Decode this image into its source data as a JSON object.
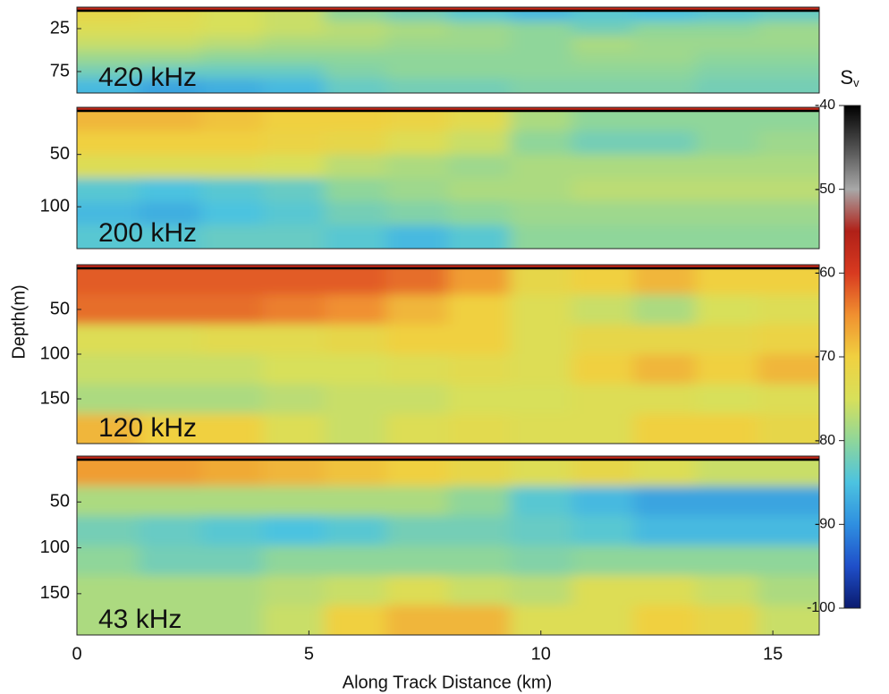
{
  "chart_data": [
    {
      "type": "heatmap",
      "label": "420 kHz",
      "xlim": [
        0,
        16
      ],
      "ylim": [
        0,
        100
      ],
      "yticks": [
        25,
        75
      ],
      "values": [
        [
          -72,
          -73,
          -75,
          -76,
          -80,
          -82,
          -84,
          -86,
          -84,
          -85,
          -84,
          -83
        ],
        [
          -74,
          -74,
          -75,
          -76,
          -77,
          -78,
          -79,
          -80,
          -82,
          -80,
          -80,
          -79
        ],
        [
          -76,
          -76,
          -77,
          -78,
          -78,
          -79,
          -79,
          -80,
          -78,
          -79,
          -79,
          -79
        ],
        [
          -79,
          -79,
          -80,
          -80,
          -80,
          -80,
          -80,
          -80,
          -79,
          -79,
          -80,
          -80
        ],
        [
          -82,
          -83,
          -83,
          -83,
          -81,
          -80,
          -80,
          -80,
          -80,
          -80,
          -81,
          -81
        ],
        [
          -86,
          -88,
          -87,
          -86,
          -83,
          -82,
          -82,
          -81,
          -81,
          -81,
          -82,
          -82
        ]
      ]
    },
    {
      "type": "heatmap",
      "label": "200 kHz",
      "xlim": [
        0,
        16
      ],
      "ylim": [
        5,
        140
      ],
      "yticks": [
        50,
        100
      ],
      "values": [
        [
          -68,
          -68,
          -69,
          -70,
          -70,
          -71,
          -73,
          -78,
          -80,
          -80,
          -80,
          -80
        ],
        [
          -70,
          -70,
          -70,
          -71,
          -72,
          -74,
          -76,
          -80,
          -82,
          -82,
          -80,
          -79
        ],
        [
          -74,
          -74,
          -74,
          -75,
          -77,
          -78,
          -79,
          -78,
          -78,
          -78,
          -78,
          -78
        ],
        [
          -84,
          -85,
          -84,
          -83,
          -80,
          -79,
          -78,
          -78,
          -77,
          -77,
          -77,
          -77
        ],
        [
          -86,
          -87,
          -85,
          -84,
          -82,
          -81,
          -80,
          -79,
          -79,
          -79,
          -79,
          -79
        ],
        [
          -84,
          -84,
          -83,
          -83,
          -84,
          -86,
          -84,
          -80,
          -80,
          -80,
          -80,
          -80
        ]
      ]
    },
    {
      "type": "heatmap",
      "label": "120 kHz",
      "xlim": [
        0,
        16
      ],
      "ylim": [
        0,
        200
      ],
      "yticks": [
        50,
        100,
        150
      ],
      "values": [
        [
          -62,
          -62,
          -62,
          -62,
          -62,
          -63,
          -66,
          -72,
          -70,
          -68,
          -70,
          -70
        ],
        [
          -63,
          -63,
          -63,
          -64,
          -65,
          -68,
          -70,
          -74,
          -76,
          -78,
          -75,
          -74
        ],
        [
          -74,
          -74,
          -73,
          -73,
          -72,
          -70,
          -70,
          -74,
          -72,
          -72,
          -72,
          -71
        ],
        [
          -76,
          -76,
          -76,
          -75,
          -75,
          -74,
          -73,
          -74,
          -70,
          -68,
          -70,
          -68
        ],
        [
          -78,
          -78,
          -78,
          -77,
          -76,
          -76,
          -75,
          -75,
          -74,
          -74,
          -75,
          -74
        ],
        [
          -68,
          -70,
          -70,
          -74,
          -76,
          -74,
          -73,
          -74,
          -74,
          -70,
          -70,
          -72
        ]
      ]
    },
    {
      "type": "heatmap",
      "label": "43 kHz",
      "xlim": [
        0,
        16
      ],
      "ylim": [
        0,
        195
      ],
      "yticks": [
        50,
        100,
        150
      ],
      "xticks": [
        0,
        5,
        10,
        15
      ],
      "values": [
        [
          -66,
          -66,
          -67,
          -68,
          -69,
          -70,
          -72,
          -74,
          -72,
          -74,
          -76,
          -76
        ],
        [
          -78,
          -78,
          -78,
          -78,
          -78,
          -78,
          -80,
          -84,
          -86,
          -88,
          -88,
          -88
        ],
        [
          -82,
          -83,
          -84,
          -85,
          -84,
          -82,
          -82,
          -83,
          -84,
          -86,
          -86,
          -86
        ],
        [
          -80,
          -82,
          -82,
          -80,
          -80,
          -80,
          -80,
          -81,
          -80,
          -80,
          -80,
          -80
        ],
        [
          -78,
          -78,
          -78,
          -77,
          -76,
          -74,
          -76,
          -77,
          -74,
          -74,
          -76,
          -78
        ],
        [
          -78,
          -78,
          -78,
          -76,
          -70,
          -68,
          -68,
          -74,
          -74,
          -70,
          -72,
          -76
        ]
      ]
    }
  ],
  "shared": {
    "xlabel": "Along Track Distance (km)",
    "ylabel": "Depth(m)"
  },
  "colorbar": {
    "label": "S",
    "label_sub": "v",
    "clim": [
      -100,
      -40
    ],
    "ticks": [
      -40,
      -50,
      -60,
      -70,
      -80,
      -90,
      -100
    ],
    "colors": [
      "#0a1a6e",
      "#1f4fc9",
      "#2f8fe0",
      "#4cc3e0",
      "#8fd69a",
      "#d8e05a",
      "#f0d040",
      "#f09030",
      "#d83a20",
      "#b02018",
      "#a8a8a8",
      "#505050",
      "#000000"
    ]
  }
}
